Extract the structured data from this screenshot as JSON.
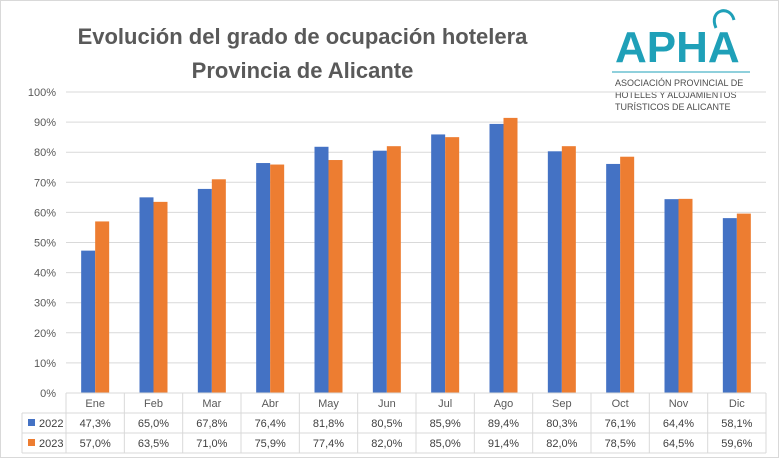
{
  "chart_data": {
    "type": "bar",
    "title": "Evolución del grado de ocupación hotelera",
    "subtitle": "Provincia de Alicante",
    "categories": [
      "Ene",
      "Feb",
      "Mar",
      "Abr",
      "May",
      "Jun",
      "Jul",
      "Ago",
      "Sep",
      "Oct",
      "Nov",
      "Dic"
    ],
    "series": [
      {
        "name": "2022",
        "color": "#4472C4",
        "values": [
          47.3,
          65.0,
          67.8,
          76.4,
          81.8,
          80.5,
          85.9,
          89.4,
          80.3,
          76.1,
          64.4,
          58.1
        ],
        "labels": [
          "47,3%",
          "65,0%",
          "67,8%",
          "76,4%",
          "81,8%",
          "80,5%",
          "85,9%",
          "89,4%",
          "80,3%",
          "76,1%",
          "64,4%",
          "58,1%"
        ]
      },
      {
        "name": "2023",
        "color": "#ED7D31",
        "values": [
          57.0,
          63.5,
          71.0,
          75.9,
          77.4,
          82.0,
          85.0,
          91.4,
          82.0,
          78.5,
          64.5,
          59.6
        ],
        "labels": [
          "57,0%",
          "63,5%",
          "71,0%",
          "75,9%",
          "77,4%",
          "82,0%",
          "85,0%",
          "91,4%",
          "82,0%",
          "78,5%",
          "64,5%",
          "59,6%"
        ]
      }
    ],
    "ylim": [
      0,
      100
    ],
    "yticks": [
      "0%",
      "10%",
      "20%",
      "30%",
      "40%",
      "50%",
      "60%",
      "70%",
      "80%",
      "90%",
      "100%"
    ],
    "grid": true,
    "legend": "data-table",
    "xlabel": "",
    "ylabel": ""
  },
  "logo": {
    "name": "APHA",
    "line1": "ASOCIACIÓN PROVINCIAL DE",
    "line2": "HOTELES Y ALOJAMIENTOS",
    "line3": "TURÍSTICOS DE ALICANTE",
    "color": "#1FA0B8"
  }
}
